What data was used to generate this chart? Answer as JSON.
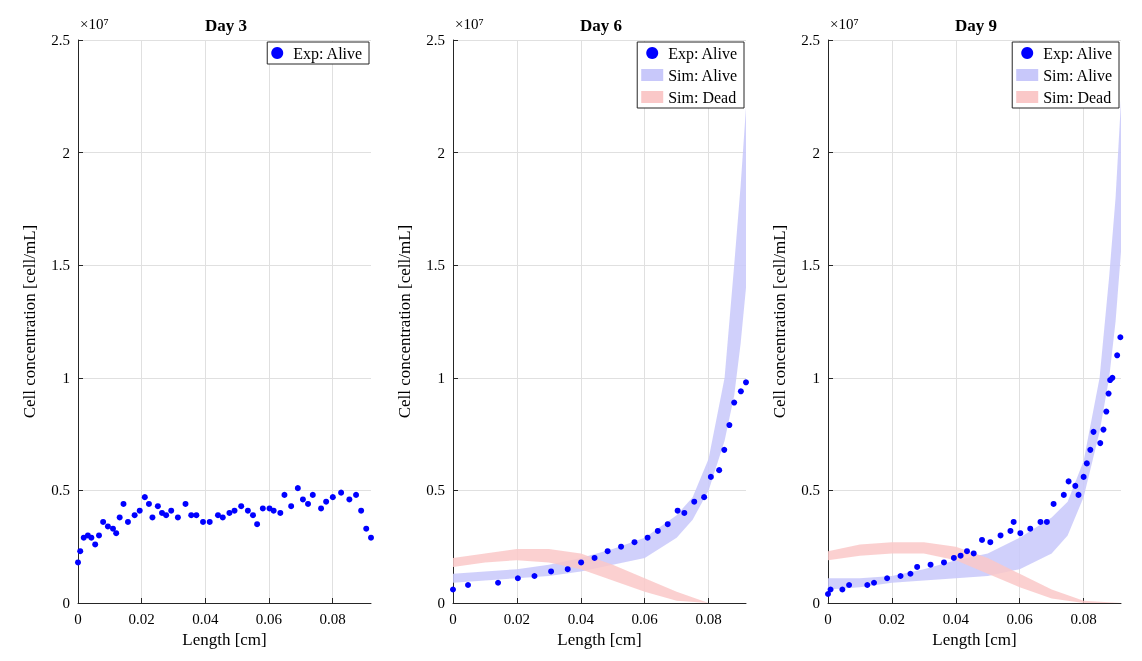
{
  "chart_data": [
    {
      "type": "scatter",
      "title": "Day 3",
      "xlabel": "Length [cm]",
      "ylabel": "Cell concentration [cell/mL]",
      "annotations": [
        "×10⁷"
      ],
      "xlim": [
        0,
        0.0921
      ],
      "xticks": [
        0,
        0.02,
        0.04,
        0.06,
        0.08
      ],
      "ylim": [
        0,
        2.5
      ],
      "yticks": [
        0,
        0.5,
        1,
        1.5,
        2,
        2.5
      ],
      "grid": true,
      "legend": "top right",
      "marker": "circle",
      "series": [
        {
          "name": "Exp: Alive",
          "type": "scatter",
          "color": "#0000ff",
          "x": [
            0,
            0.0007,
            0.0018,
            0.0031,
            0.0042,
            0.0054,
            0.0066,
            0.0079,
            0.0094,
            0.011,
            0.012,
            0.0131,
            0.0143,
            0.0157,
            0.0178,
            0.0194,
            0.021,
            0.0223,
            0.0234,
            0.0251,
            0.0264,
            0.0277,
            0.0293,
            0.0314,
            0.0338,
            0.0356,
            0.0372,
            0.0393,
            0.0414,
            0.044,
            0.0455,
            0.0476,
            0.0492,
            0.0513,
            0.0534,
            0.055,
            0.0563,
            0.0581,
            0.0602,
            0.0615,
            0.0636,
            0.0649,
            0.067,
            0.0691,
            0.0707,
            0.0723,
            0.0738,
            0.0764,
            0.078,
            0.0801,
            0.0827,
            0.0853,
            0.0874,
            0.089,
            0.0906,
            0.0921
          ],
          "values": [
            0.18,
            0.23,
            0.29,
            0.3,
            0.29,
            0.26,
            0.3,
            0.36,
            0.34,
            0.33,
            0.31,
            0.38,
            0.44,
            0.36,
            0.39,
            0.41,
            0.47,
            0.44,
            0.38,
            0.43,
            0.4,
            0.39,
            0.41,
            0.38,
            0.44,
            0.39,
            0.39,
            0.36,
            0.36,
            0.39,
            0.38,
            0.4,
            0.41,
            0.43,
            0.41,
            0.39,
            0.35,
            0.42,
            0.42,
            0.41,
            0.4,
            0.48,
            0.43,
            0.51,
            0.46,
            0.44,
            0.48,
            0.42,
            0.45,
            0.47,
            0.49,
            0.46,
            0.48,
            0.41,
            0.33,
            0.29
          ]
        }
      ]
    },
    {
      "type": "scatter",
      "title": "Day 6",
      "xlabel": "Length [cm]",
      "ylabel": "Cell concentration [cell/mL]",
      "annotations": [
        "×10⁷"
      ],
      "xlim": [
        0,
        0.0917
      ],
      "xticks": [
        0,
        0.02,
        0.04,
        0.06,
        0.08
      ],
      "ylim": [
        0,
        2.5
      ],
      "yticks": [
        0,
        0.5,
        1,
        1.5,
        2,
        2.5
      ],
      "grid": true,
      "legend": "top right",
      "marker": "circle",
      "series": [
        {
          "name": "Exp: Alive",
          "type": "scatter",
          "color": "#0000ff",
          "x": [
            0,
            0.0047,
            0.0141,
            0.0203,
            0.0255,
            0.0307,
            0.0359,
            0.0401,
            0.0443,
            0.0484,
            0.0526,
            0.0568,
            0.0609,
            0.0641,
            0.0672,
            0.0703,
            0.0724,
            0.0755,
            0.0786,
            0.0807,
            0.0833,
            0.0849,
            0.0865,
            0.088,
            0.0901,
            0.0917
          ],
          "values": [
            0.06,
            0.08,
            0.09,
            0.11,
            0.12,
            0.14,
            0.15,
            0.18,
            0.2,
            0.23,
            0.25,
            0.27,
            0.29,
            0.32,
            0.35,
            0.41,
            0.4,
            0.45,
            0.47,
            0.56,
            0.59,
            0.68,
            0.79,
            0.89,
            0.94,
            0.98
          ]
        },
        {
          "name": "Sim: Alive",
          "type": "area",
          "color": "#c8c8fa",
          "x": [
            0,
            0.01,
            0.02,
            0.03,
            0.04,
            0.05,
            0.06,
            0.07,
            0.075,
            0.08,
            0.085,
            0.088,
            0.09,
            0.0917
          ],
          "values": [
            null,
            null,
            null,
            null,
            null,
            null,
            null,
            null,
            null,
            null,
            null,
            null,
            null,
            null
          ],
          "lower": [
            0.09,
            0.1,
            0.11,
            0.12,
            0.14,
            0.17,
            0.2,
            0.29,
            0.37,
            0.5,
            0.72,
            0.92,
            1.15,
            1.4
          ],
          "upper": [
            0.13,
            0.14,
            0.15,
            0.17,
            0.2,
            0.24,
            0.29,
            0.39,
            0.47,
            0.64,
            1,
            1.5,
            1.85,
            2.2
          ]
        },
        {
          "name": "Sim: Dead",
          "type": "area",
          "color": "#fac8c8",
          "x": [
            0,
            0.01,
            0.02,
            0.03,
            0.04,
            0.05,
            0.06,
            0.07,
            0.08,
            0.0917
          ],
          "values": [
            null,
            null,
            null,
            null,
            null,
            null,
            null,
            null,
            null,
            null
          ],
          "lower": [
            0.16,
            0.18,
            0.19,
            0.18,
            0.15,
            0.1,
            0.05,
            0.01,
            0,
            0
          ],
          "upper": [
            0.2,
            0.22,
            0.24,
            0.24,
            0.22,
            0.17,
            0.11,
            0.05,
            0,
            0
          ]
        }
      ]
    },
    {
      "type": "scatter",
      "title": "Day 9",
      "xlabel": "Length [cm]",
      "ylabel": "Cell concentration [cell/mL]",
      "annotations": [
        "×10⁷"
      ],
      "xlim": [
        0,
        0.0917
      ],
      "xticks": [
        0,
        0.02,
        0.04,
        0.06,
        0.08
      ],
      "ylim": [
        0,
        2.5
      ],
      "yticks": [
        0,
        0.5,
        1,
        1.5,
        2,
        2.5
      ],
      "grid": true,
      "legend": "top right",
      "marker": "circle",
      "series": [
        {
          "name": "Exp: Alive",
          "type": "scatter",
          "color": "#0000ff",
          "x": [
            0,
            0.0008,
            0.0045,
            0.0066,
            0.0123,
            0.0144,
            0.0185,
            0.0227,
            0.0258,
            0.0279,
            0.0321,
            0.0363,
            0.0394,
            0.0415,
            0.0435,
            0.0456,
            0.0482,
            0.0508,
            0.054,
            0.0571,
            0.0581,
            0.0602,
            0.0633,
            0.0665,
            0.0685,
            0.0706,
            0.0738,
            0.0753,
            0.0774,
            0.0784,
            0.08,
            0.081,
            0.0821,
            0.0831,
            0.0852,
            0.0862,
            0.0871,
            0.0878,
            0.0883,
            0.089,
            0.0905,
            0.0915
          ],
          "values": [
            0.04,
            0.06,
            0.06,
            0.08,
            0.08,
            0.09,
            0.11,
            0.12,
            0.13,
            0.16,
            0.17,
            0.18,
            0.2,
            0.21,
            0.23,
            0.22,
            0.28,
            0.27,
            0.3,
            0.32,
            0.36,
            0.31,
            0.33,
            0.36,
            0.36,
            0.44,
            0.48,
            0.54,
            0.52,
            0.48,
            0.56,
            0.62,
            0.68,
            0.76,
            0.71,
            0.77,
            0.85,
            0.93,
            0.99,
            1,
            1.1,
            1.18
          ]
        },
        {
          "name": "Sim: Alive",
          "type": "area",
          "color": "#c8c8fa",
          "x": [
            0,
            0.01,
            0.02,
            0.03,
            0.04,
            0.05,
            0.06,
            0.07,
            0.075,
            0.08,
            0.085,
            0.088,
            0.09,
            0.0917
          ],
          "values": [
            null,
            null,
            null,
            null,
            null,
            null,
            null,
            null,
            null,
            null,
            null,
            null,
            null,
            null
          ],
          "lower": [
            0.06,
            0.07,
            0.09,
            0.1,
            0.11,
            0.12,
            0.15,
            0.22,
            0.3,
            0.47,
            0.76,
            1,
            1.25,
            1.56
          ],
          "upper": [
            0.11,
            0.11,
            0.12,
            0.15,
            0.19,
            0.22,
            0.29,
            0.38,
            0.45,
            0.63,
            1,
            1.45,
            1.8,
            2.23
          ]
        },
        {
          "name": "Sim: Dead",
          "type": "area",
          "color": "#fac8c8",
          "x": [
            0,
            0.01,
            0.02,
            0.03,
            0.04,
            0.05,
            0.06,
            0.07,
            0.08,
            0.0917
          ],
          "values": [
            null,
            null,
            null,
            null,
            null,
            null,
            null,
            null,
            null,
            null
          ],
          "lower": [
            0.19,
            0.21,
            0.22,
            0.22,
            0.19,
            0.13,
            0.07,
            0.02,
            0,
            0
          ],
          "upper": [
            0.23,
            0.26,
            0.27,
            0.27,
            0.25,
            0.2,
            0.13,
            0.06,
            0.01,
            0
          ]
        }
      ]
    }
  ]
}
